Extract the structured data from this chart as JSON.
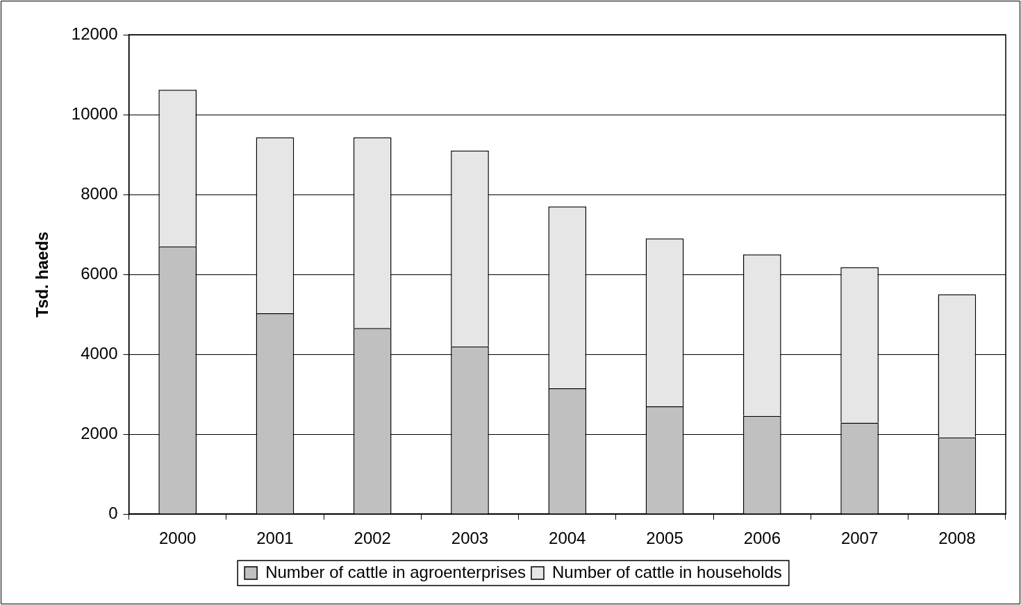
{
  "chart_data": {
    "type": "bar",
    "ylabel": "Tsd. haeds",
    "stacked": true,
    "categories": [
      "2000",
      "2001",
      "2002",
      "2003",
      "2004",
      "2005",
      "2006",
      "2007",
      "2008"
    ],
    "series": [
      {
        "name": "Number of cattle in agroenterprises",
        "color": "#c0c0c0",
        "values": [
          6700,
          5030,
          4660,
          4200,
          3150,
          2700,
          2460,
          2290,
          1920
        ]
      },
      {
        "name": "Number of cattle in households",
        "color": "#e6e6e6",
        "values": [
          3920,
          4400,
          4770,
          4900,
          4550,
          4200,
          4040,
          3890,
          3580
        ]
      }
    ],
    "ylim": [
      0,
      12000
    ],
    "yticks": [
      0,
      2000,
      4000,
      6000,
      8000,
      10000,
      12000
    ],
    "grid": "y",
    "legend": "bottom"
  }
}
